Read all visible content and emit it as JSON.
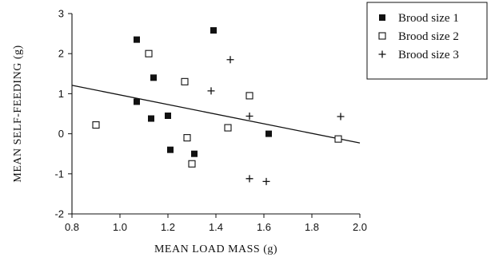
{
  "chart_data": {
    "type": "scatter",
    "xlabel": "MEAN LOAD MASS (g)",
    "ylabel": "MEAN SELF-FEEDING (g)",
    "xlim": [
      0.8,
      2.0
    ],
    "ylim": [
      -2,
      3
    ],
    "xticks": [
      "0.8",
      "1.0",
      "1.2",
      "1.4",
      "1.6",
      "1.8",
      "2.0"
    ],
    "yticks": [
      "-2",
      "-1",
      "0",
      "1",
      "2",
      "3"
    ],
    "grid": false,
    "legend_position": "top-right",
    "series": [
      {
        "name": "Brood size 1",
        "marker": "filled-square",
        "points": [
          [
            1.07,
            2.35
          ],
          [
            1.39,
            2.58
          ],
          [
            1.14,
            1.4
          ],
          [
            1.07,
            0.8
          ],
          [
            1.13,
            0.38
          ],
          [
            1.2,
            0.45
          ],
          [
            1.21,
            -0.4
          ],
          [
            1.31,
            -0.5
          ],
          [
            1.62,
            0.0
          ]
        ]
      },
      {
        "name": "Brood size 2",
        "marker": "open-square",
        "points": [
          [
            0.9,
            0.22
          ],
          [
            1.12,
            2.0
          ],
          [
            1.27,
            1.3
          ],
          [
            1.54,
            0.95
          ],
          [
            1.45,
            0.15
          ],
          [
            1.28,
            -0.1
          ],
          [
            1.3,
            -0.75
          ],
          [
            1.91,
            -0.13
          ]
        ]
      },
      {
        "name": "Brood size 3",
        "marker": "plus",
        "points": [
          [
            1.46,
            1.85
          ],
          [
            1.38,
            1.07
          ],
          [
            1.54,
            0.44
          ],
          [
            1.92,
            0.43
          ],
          [
            1.54,
            -1.12
          ],
          [
            1.61,
            -1.19
          ]
        ]
      }
    ],
    "trend_line": {
      "from": [
        0.8,
        1.21
      ],
      "to": [
        2.0,
        -0.23
      ]
    }
  }
}
